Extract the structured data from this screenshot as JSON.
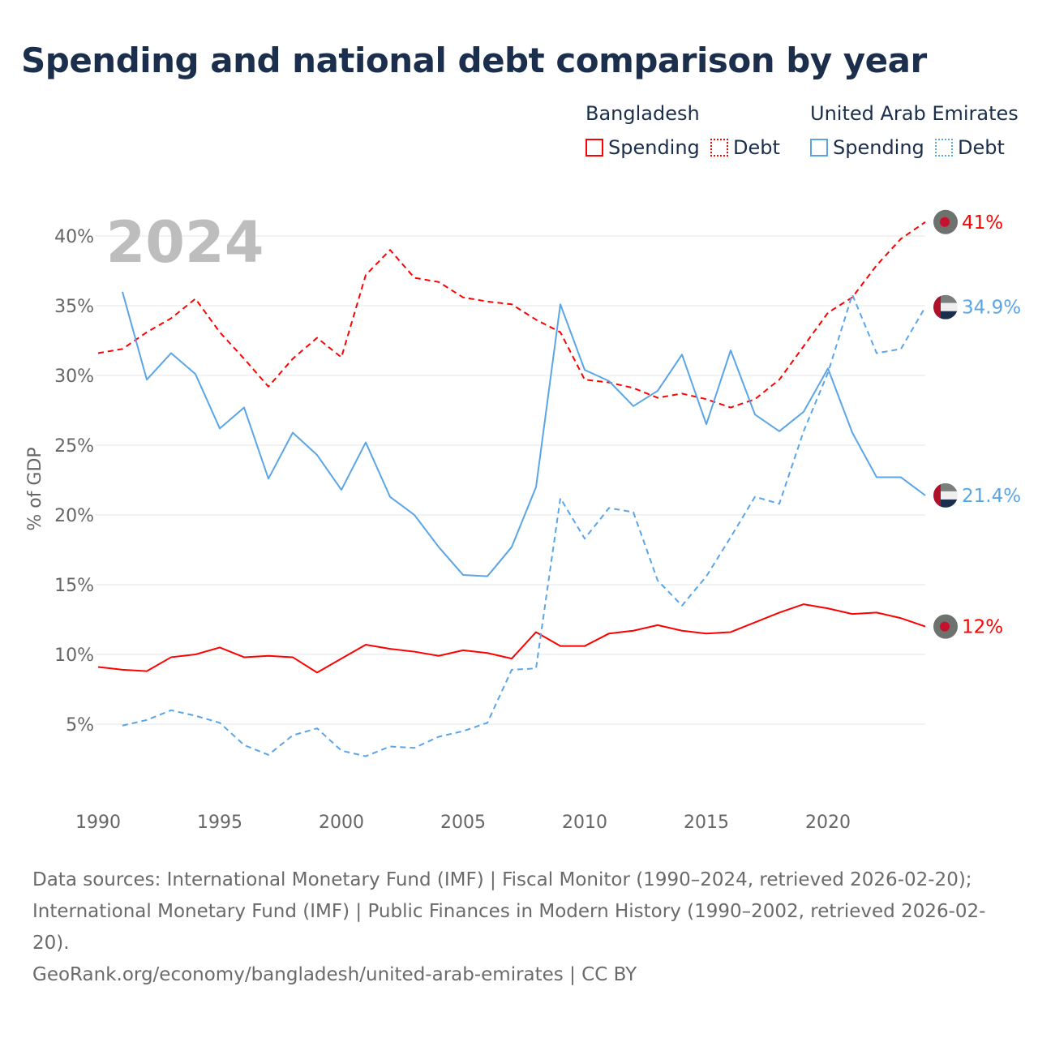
{
  "title": "Spending and national debt comparison by year",
  "legend": {
    "groups": [
      {
        "name": "Bangladesh",
        "items": [
          "Spending",
          "Debt"
        ],
        "color": "#ff0000"
      },
      {
        "name": "United Arab Emirates",
        "items": [
          "Spending",
          "Debt"
        ],
        "color": "#5aa5e8"
      }
    ]
  },
  "footer": {
    "line1": "Data sources: International Monetary Fund (IMF) | Fiscal Monitor (1990–2024, retrieved 2026-02-20); International Monetary Fund (IMF) | Public Finances in Modern History (1990–2002, retrieved 2026-02-20).",
    "line2": "GeoRank.org/economy/bangladesh/united-arab-emirates | CC BY"
  },
  "chart_data": {
    "type": "line",
    "title": "Spending and national debt comparison by year",
    "year_label": "2024",
    "ylabel": "% of GDP",
    "xlabel": "",
    "xlim": [
      1990,
      2024
    ],
    "ylim": [
      0,
      42
    ],
    "xticks": [
      1990,
      1995,
      2000,
      2005,
      2010,
      2015,
      2020
    ],
    "yticks": [
      5,
      10,
      15,
      20,
      25,
      30,
      35,
      40
    ],
    "ytick_labels": [
      "5%",
      "10%",
      "15%",
      "20%",
      "25%",
      "30%",
      "35%",
      "40%"
    ],
    "grid": true,
    "legend_placement": "top-right",
    "series": [
      {
        "name": "Bangladesh Spending",
        "color": "#ff0000",
        "dash": false,
        "end_label": "12%",
        "start": 1990,
        "values": [
          9.1,
          8.9,
          8.8,
          9.8,
          10.0,
          10.5,
          9.8,
          9.9,
          9.8,
          8.7,
          9.7,
          10.7,
          10.4,
          10.2,
          9.9,
          10.3,
          10.1,
          9.7,
          11.6,
          10.6,
          10.6,
          11.5,
          11.7,
          12.1,
          11.7,
          11.5,
          11.6,
          12.3,
          13.0,
          13.6,
          13.3,
          12.9,
          13.0,
          12.6,
          12.0
        ]
      },
      {
        "name": "Bangladesh Debt",
        "color": "#ff0000",
        "dash": true,
        "end_label": "41%",
        "start": 1990,
        "values": [
          31.6,
          31.9,
          33.1,
          34.1,
          35.5,
          33.1,
          31.2,
          29.2,
          31.2,
          32.7,
          31.3,
          37.2,
          39.0,
          37.0,
          36.7,
          35.6,
          35.3,
          35.1,
          34.0,
          33.1,
          29.7,
          29.5,
          29.1,
          28.4,
          28.7,
          28.3,
          27.7,
          28.3,
          29.7,
          32.1,
          34.5,
          35.6,
          37.9,
          39.8,
          41.0
        ]
      },
      {
        "name": "United Arab Emirates Spending",
        "color": "#5aa5e8",
        "dash": false,
        "end_label": "21.4%",
        "start": 1991,
        "values": [
          36.0,
          29.7,
          31.6,
          30.1,
          26.2,
          27.7,
          22.6,
          25.9,
          24.3,
          21.8,
          25.2,
          21.3,
          20.0,
          17.7,
          15.7,
          15.6,
          17.7,
          22.0,
          35.1,
          30.4,
          29.6,
          27.8,
          28.9,
          31.5,
          26.5,
          31.8,
          27.2,
          26.0,
          27.4,
          30.5,
          25.9,
          22.7,
          22.7,
          21.4
        ]
      },
      {
        "name": "United Arab Emirates Debt",
        "color": "#5aa5e8",
        "dash": true,
        "end_label": "34.9%",
        "start": 1991,
        "values": [
          4.9,
          5.3,
          6.0,
          5.6,
          5.1,
          3.5,
          2.8,
          4.2,
          4.7,
          3.1,
          2.7,
          3.4,
          3.3,
          4.1,
          4.5,
          5.1,
          8.9,
          9.0,
          21.2,
          18.3,
          20.5,
          20.2,
          15.3,
          13.5,
          15.6,
          18.4,
          21.3,
          20.8,
          26.0,
          30.2,
          35.8,
          31.6,
          31.9,
          34.9
        ]
      }
    ]
  }
}
